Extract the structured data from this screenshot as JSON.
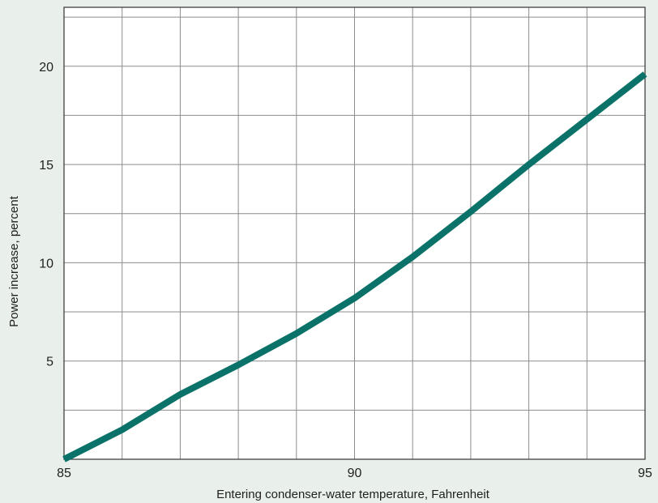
{
  "chart_data": {
    "type": "line",
    "title": "",
    "xlabel": "Entering condenser-water temperature, Fahrenheit",
    "ylabel": "Power increase, percent",
    "xlim": [
      85,
      95
    ],
    "ylim": [
      0,
      23
    ],
    "x_ticks": [
      85,
      90,
      95
    ],
    "x_tick_labels": [
      "85",
      "90",
      "95"
    ],
    "y_ticks": [
      5,
      10,
      15,
      20
    ],
    "y_tick_labels": [
      "5",
      "10",
      "15",
      "20"
    ],
    "grid": true,
    "x_grid_step": 1,
    "y_grid_step": 2.5,
    "series": [
      {
        "x": [
          85,
          86,
          87,
          88,
          89,
          90,
          91,
          92,
          93,
          94,
          95
        ],
        "y": [
          0,
          1.5,
          3.3,
          4.8,
          6.4,
          8.2,
          10.3,
          12.6,
          15.0,
          17.3,
          19.6
        ],
        "color": "#0a7268"
      }
    ],
    "colors": {
      "background": "#e9efea",
      "plot_background": "#ffffff",
      "grid": "#8c8c8c",
      "line": "#0a7268"
    }
  }
}
